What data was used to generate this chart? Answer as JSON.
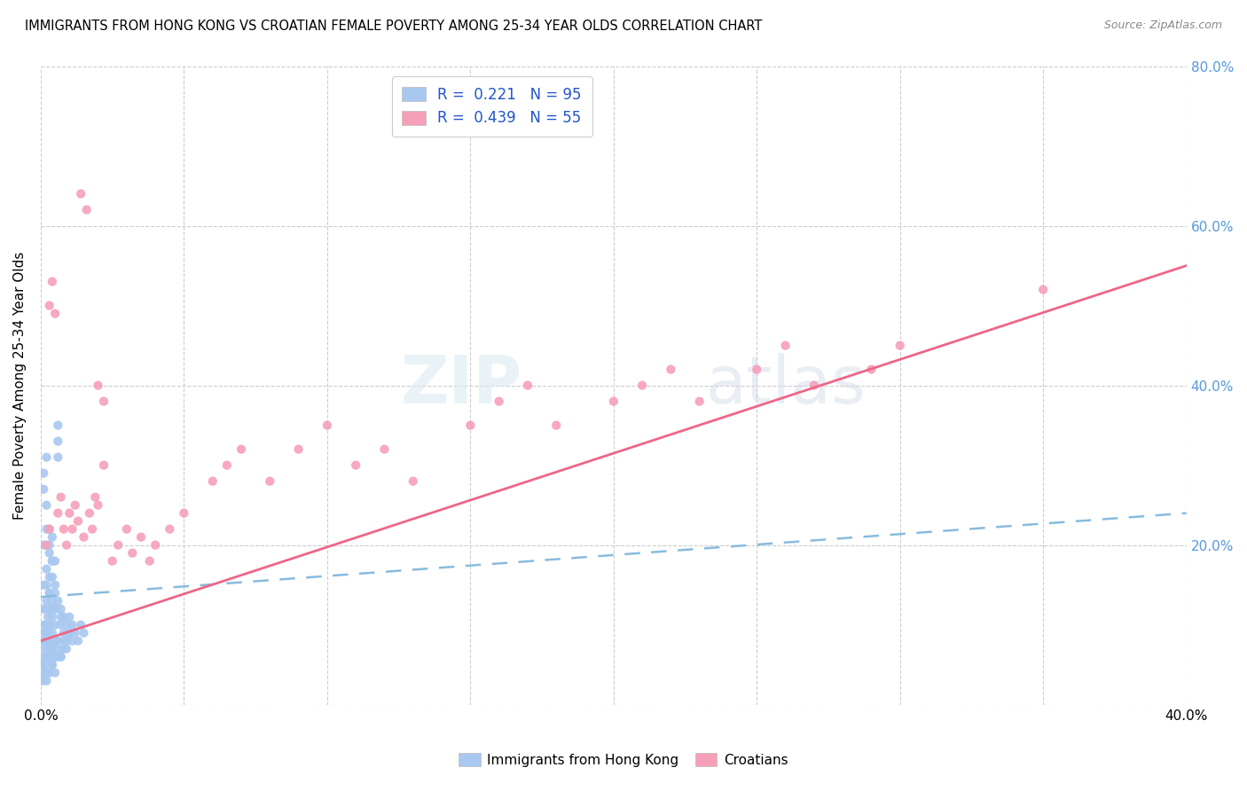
{
  "title": "IMMIGRANTS FROM HONG KONG VS CROATIAN FEMALE POVERTY AMONG 25-34 YEAR OLDS CORRELATION CHART",
  "source": "Source: ZipAtlas.com",
  "ylabel": "Female Poverty Among 25-34 Year Olds",
  "xlim": [
    0.0,
    0.4
  ],
  "ylim": [
    0.0,
    0.8
  ],
  "legend_label1": "Immigrants from Hong Kong",
  "legend_label2": "Croatians",
  "r1": 0.221,
  "n1": 95,
  "r2": 0.439,
  "n2": 55,
  "color1": "#a8c8f0",
  "color2": "#f5a0b8",
  "line1_color": "#88bbdd",
  "line2_color": "#ee6688",
  "watermark_zip": "ZIP",
  "watermark_atlas": "atlas",
  "hk_x": [
    0.0005,
    0.001,
    0.001,
    0.001,
    0.001,
    0.0015,
    0.0015,
    0.002,
    0.002,
    0.002,
    0.002,
    0.002,
    0.002,
    0.0025,
    0.0025,
    0.003,
    0.003,
    0.003,
    0.003,
    0.003,
    0.003,
    0.004,
    0.004,
    0.004,
    0.004,
    0.004,
    0.005,
    0.005,
    0.005,
    0.005,
    0.006,
    0.006,
    0.006,
    0.006,
    0.007,
    0.007,
    0.007,
    0.008,
    0.008,
    0.008,
    0.009,
    0.009,
    0.01,
    0.01,
    0.011,
    0.011,
    0.012,
    0.013,
    0.014,
    0.015,
    0.001,
    0.001,
    0.002,
    0.002,
    0.003,
    0.003,
    0.004,
    0.004,
    0.005,
    0.005,
    0.0005,
    0.001,
    0.0015,
    0.002,
    0.002,
    0.003,
    0.003,
    0.004,
    0.005,
    0.006,
    0.001,
    0.002,
    0.002,
    0.003,
    0.003,
    0.004,
    0.004,
    0.005,
    0.006,
    0.007,
    0.001,
    0.002,
    0.003,
    0.004,
    0.005,
    0.006,
    0.007,
    0.008,
    0.009,
    0.01,
    0.001,
    0.002,
    0.003,
    0.004,
    0.005
  ],
  "hk_y": [
    0.05,
    0.08,
    0.1,
    0.06,
    0.12,
    0.07,
    0.09,
    0.08,
    0.1,
    0.06,
    0.12,
    0.15,
    0.04,
    0.09,
    0.11,
    0.07,
    0.1,
    0.08,
    0.12,
    0.06,
    0.14,
    0.09,
    0.11,
    0.07,
    0.13,
    0.05,
    0.1,
    0.08,
    0.12,
    0.06,
    0.31,
    0.33,
    0.35,
    0.08,
    0.1,
    0.12,
    0.06,
    0.09,
    0.11,
    0.07,
    0.08,
    0.1,
    0.09,
    0.11,
    0.08,
    0.1,
    0.09,
    0.08,
    0.1,
    0.09,
    0.27,
    0.29,
    0.25,
    0.31,
    0.22,
    0.2,
    0.18,
    0.16,
    0.14,
    0.12,
    0.03,
    0.04,
    0.05,
    0.03,
    0.06,
    0.04,
    0.07,
    0.05,
    0.04,
    0.06,
    0.15,
    0.17,
    0.13,
    0.16,
    0.14,
    0.18,
    0.12,
    0.15,
    0.13,
    0.11,
    0.08,
    0.09,
    0.07,
    0.08,
    0.06,
    0.07,
    0.06,
    0.08,
    0.07,
    0.09,
    0.2,
    0.22,
    0.19,
    0.21,
    0.18
  ],
  "cr_x": [
    0.002,
    0.003,
    0.003,
    0.004,
    0.005,
    0.006,
    0.007,
    0.008,
    0.009,
    0.01,
    0.011,
    0.012,
    0.013,
    0.015,
    0.017,
    0.018,
    0.019,
    0.02,
    0.022,
    0.025,
    0.027,
    0.03,
    0.032,
    0.035,
    0.038,
    0.04,
    0.045,
    0.05,
    0.06,
    0.065,
    0.07,
    0.08,
    0.09,
    0.1,
    0.11,
    0.12,
    0.13,
    0.15,
    0.16,
    0.17,
    0.18,
    0.2,
    0.21,
    0.22,
    0.23,
    0.25,
    0.26,
    0.27,
    0.29,
    0.3,
    0.014,
    0.016,
    0.02,
    0.022,
    0.35
  ],
  "cr_y": [
    0.2,
    0.22,
    0.5,
    0.53,
    0.49,
    0.24,
    0.26,
    0.22,
    0.2,
    0.24,
    0.22,
    0.25,
    0.23,
    0.21,
    0.24,
    0.22,
    0.26,
    0.25,
    0.3,
    0.18,
    0.2,
    0.22,
    0.19,
    0.21,
    0.18,
    0.2,
    0.22,
    0.24,
    0.28,
    0.3,
    0.32,
    0.28,
    0.32,
    0.35,
    0.3,
    0.32,
    0.28,
    0.35,
    0.38,
    0.4,
    0.35,
    0.38,
    0.4,
    0.42,
    0.38,
    0.42,
    0.45,
    0.4,
    0.42,
    0.45,
    0.64,
    0.62,
    0.4,
    0.38,
    0.52
  ],
  "hk_trend_x": [
    0.0,
    0.4
  ],
  "hk_trend_y": [
    0.135,
    0.24
  ],
  "cr_trend_x": [
    0.0,
    0.4
  ],
  "cr_trend_y": [
    0.08,
    0.55
  ]
}
